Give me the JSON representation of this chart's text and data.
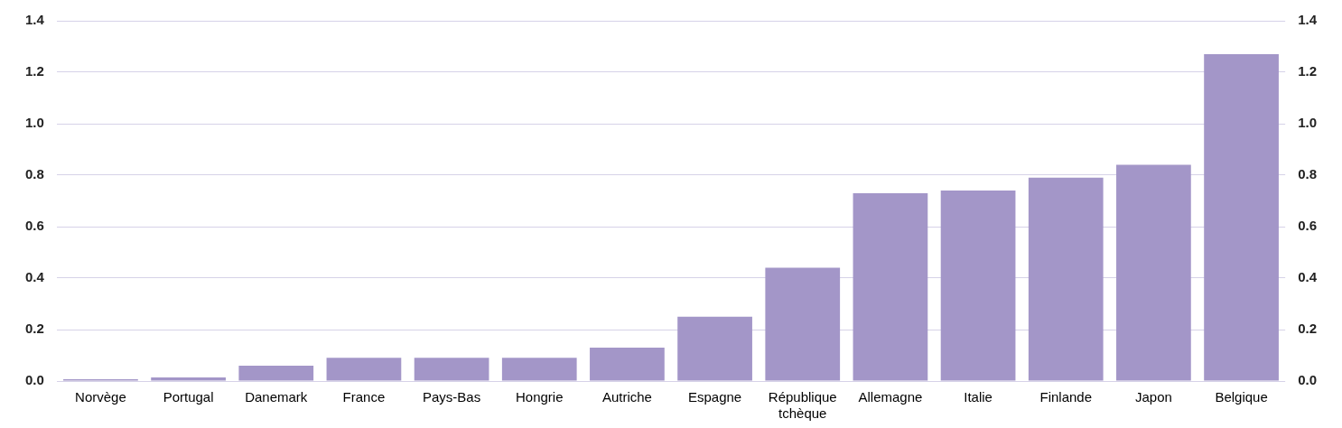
{
  "chart_data": {
    "type": "bar",
    "categories": [
      "Norvège",
      "Portugal",
      "Danemark",
      "France",
      "Pays-Bas",
      "Hongrie",
      "Autriche",
      "Espagne",
      "République tchèque",
      "Allemagne",
      "Italie",
      "Finlande",
      "Japon",
      "Belgique"
    ],
    "values": [
      0.007,
      0.014,
      0.06,
      0.09,
      0.09,
      0.09,
      0.13,
      0.25,
      0.44,
      0.73,
      0.74,
      0.79,
      0.84,
      1.27
    ],
    "color": "#a396c8",
    "ylim": [
      0,
      1.4
    ],
    "yticks": [
      {
        "value": 0,
        "label": "0.0"
      },
      {
        "value": 0.2,
        "label": "0.2"
      },
      {
        "value": 0.4,
        "label": "0.4"
      },
      {
        "value": 0.6,
        "label": "0.6"
      },
      {
        "value": 0.8,
        "label": "0.8"
      },
      {
        "value": 1,
        "label": "1.0"
      },
      {
        "value": 1.2,
        "label": "1.2"
      },
      {
        "value": 1.4,
        "label": "1.4"
      }
    ],
    "y2lim": [
      0,
      1.4
    ],
    "y2ticks": [
      {
        "value": 0,
        "label": "0.0"
      },
      {
        "value": 0.2,
        "label": "0.2"
      },
      {
        "value": 0.4,
        "label": "0.4"
      },
      {
        "value": 0.6,
        "label": "0.6"
      },
      {
        "value": 0.8,
        "label": "0.8"
      },
      {
        "value": 1,
        "label": "1.0"
      },
      {
        "value": 1.2,
        "label": "1.2"
      },
      {
        "value": 1.4,
        "label": "1.4"
      }
    ],
    "grid": "y",
    "legend": false
  }
}
